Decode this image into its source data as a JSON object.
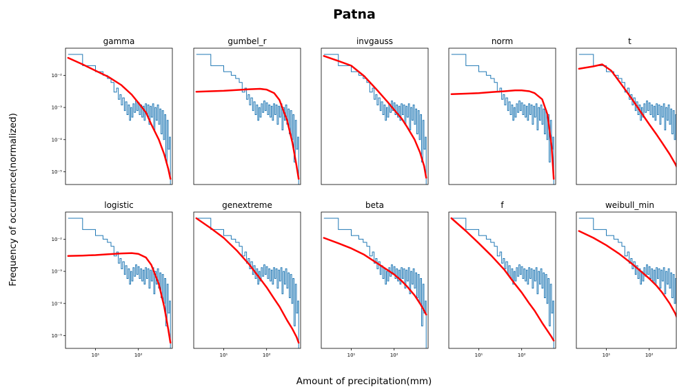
{
  "figure": {
    "title": "Patna",
    "xlabel": "Amount of precipitation(mm)",
    "ylabel": "Frequency of occurrence(normalized)"
  },
  "chart_data": {
    "type": "line",
    "xscale": "log",
    "yscale": "log",
    "xlim": [
      2,
      620
    ],
    "ylim": [
      4e-06,
      0.07
    ],
    "x_ticks": [
      {
        "value": 10,
        "label": "10¹"
      },
      {
        "value": 100,
        "label": "10²"
      }
    ],
    "y_ticks": [
      {
        "value": 0.01,
        "label": "10⁻²"
      },
      {
        "value": 0.001,
        "label": "10⁻³"
      },
      {
        "value": 0.0001,
        "label": "10⁻⁴"
      },
      {
        "value": 1e-05,
        "label": "10⁻⁵"
      }
    ],
    "histogram": {
      "steps": [
        [
          2.3,
          0.045
        ],
        [
          5,
          0.045
        ],
        [
          5,
          0.02
        ],
        [
          10,
          0.02
        ],
        [
          10,
          0.013
        ],
        [
          15,
          0.013
        ],
        [
          15,
          0.01
        ],
        [
          19,
          0.01
        ],
        [
          19,
          0.008
        ],
        [
          23,
          0.008
        ],
        [
          23,
          0.006
        ],
        [
          27,
          0.006
        ],
        [
          27,
          0.003
        ],
        [
          31,
          0.003
        ],
        [
          31,
          0.004
        ],
        [
          34,
          0.004
        ],
        [
          34,
          0.0018
        ],
        [
          37,
          0.0018
        ],
        [
          37,
          0.0025
        ],
        [
          40,
          0.0025
        ],
        [
          40,
          0.0012
        ],
        [
          43,
          0.0012
        ],
        [
          43,
          0.002
        ],
        [
          47,
          0.002
        ],
        [
          47,
          0.0008
        ],
        [
          50,
          0.0008
        ],
        [
          50,
          0.0015
        ],
        [
          54,
          0.0015
        ],
        [
          54,
          0.0006
        ],
        [
          58,
          0.0006
        ],
        [
          58,
          0.0012
        ],
        [
          62,
          0.0012
        ],
        [
          62,
          0.0004
        ],
        [
          66,
          0.0004
        ],
        [
          66,
          0.001
        ],
        [
          70,
          0.001
        ],
        [
          70,
          0.0005
        ],
        [
          75,
          0.0005
        ],
        [
          75,
          0.0013
        ],
        [
          80,
          0.0013
        ],
        [
          80,
          0.0007
        ],
        [
          86,
          0.0007
        ],
        [
          86,
          0.0016
        ],
        [
          92,
          0.0016
        ],
        [
          92,
          0.0008
        ],
        [
          98,
          0.0008
        ],
        [
          98,
          0.0014
        ],
        [
          105,
          0.0014
        ],
        [
          105,
          0.0006
        ],
        [
          112,
          0.0006
        ],
        [
          112,
          0.0012
        ],
        [
          120,
          0.0012
        ],
        [
          120,
          0.0005
        ],
        [
          128,
          0.0005
        ],
        [
          128,
          0.0011
        ],
        [
          136,
          0.0011
        ],
        [
          136,
          0.0004
        ],
        [
          145,
          0.0004
        ],
        [
          145,
          0.0013
        ],
        [
          155,
          0.0013
        ],
        [
          155,
          0.0006
        ],
        [
          165,
          0.0006
        ],
        [
          165,
          0.0012
        ],
        [
          176,
          0.0012
        ],
        [
          176,
          0.0003
        ],
        [
          188,
          0.0003
        ],
        [
          188,
          0.0011
        ],
        [
          200,
          0.0011
        ],
        [
          200,
          0.0005
        ],
        [
          214,
          0.0005
        ],
        [
          214,
          0.0013
        ],
        [
          228,
          0.0013
        ],
        [
          228,
          0.0002
        ],
        [
          243,
          0.0002
        ],
        [
          243,
          0.001
        ],
        [
          260,
          0.001
        ],
        [
          260,
          0.0004
        ],
        [
          277,
          0.0004
        ],
        [
          277,
          0.0012
        ],
        [
          296,
          0.0012
        ],
        [
          296,
          0.0003
        ],
        [
          316,
          0.0003
        ],
        [
          316,
          0.0009
        ],
        [
          337,
          0.0009
        ],
        [
          337,
          0.00015
        ],
        [
          360,
          0.00015
        ],
        [
          360,
          0.0008
        ],
        [
          384,
          0.0008
        ],
        [
          384,
          0.0001
        ],
        [
          410,
          0.0001
        ],
        [
          410,
          0.0006
        ],
        [
          437,
          0.0006
        ],
        [
          437,
          2e-05
        ],
        [
          466,
          2e-05
        ],
        [
          466,
          0.0004
        ],
        [
          497,
          0.0004
        ],
        [
          497,
          5e-05
        ],
        [
          530,
          5e-05
        ],
        [
          530,
          0.00012
        ],
        [
          560,
          0.00012
        ],
        [
          560,
          4e-06
        ]
      ]
    },
    "panels": [
      {
        "title": "gamma",
        "fit": [
          [
            2.3,
            0.035
          ],
          [
            5,
            0.022
          ],
          [
            10,
            0.014
          ],
          [
            20,
            0.009
          ],
          [
            40,
            0.005
          ],
          [
            70,
            0.0025
          ],
          [
            100,
            0.0014
          ],
          [
            150,
            0.0007
          ],
          [
            200,
            0.0003
          ],
          [
            300,
            0.0001
          ],
          [
            400,
            3.5e-05
          ],
          [
            500,
            1.2e-05
          ],
          [
            560,
            6e-06
          ]
        ]
      },
      {
        "title": "gumbel_r",
        "fit": [
          [
            2.3,
            0.0031
          ],
          [
            5,
            0.0032
          ],
          [
            10,
            0.0033
          ],
          [
            20,
            0.0035
          ],
          [
            40,
            0.0037
          ],
          [
            70,
            0.0038
          ],
          [
            100,
            0.0036
          ],
          [
            150,
            0.0028
          ],
          [
            200,
            0.0017
          ],
          [
            300,
            0.0004
          ],
          [
            400,
            8e-05
          ],
          [
            500,
            1.5e-05
          ],
          [
            560,
            6e-06
          ]
        ]
      },
      {
        "title": "invgauss",
        "fit": [
          [
            2.3,
            0.04
          ],
          [
            5,
            0.028
          ],
          [
            10,
            0.02
          ],
          [
            20,
            0.0095
          ],
          [
            40,
            0.0035
          ],
          [
            70,
            0.0015
          ],
          [
            100,
            0.00085
          ],
          [
            150,
            0.00045
          ],
          [
            200,
            0.00025
          ],
          [
            300,
            0.0001
          ],
          [
            400,
            4e-05
          ],
          [
            500,
            1.5e-05
          ],
          [
            560,
            6.5e-06
          ]
        ]
      },
      {
        "title": "norm",
        "fit": [
          [
            2.3,
            0.0026
          ],
          [
            5,
            0.0027
          ],
          [
            10,
            0.0028
          ],
          [
            20,
            0.003
          ],
          [
            40,
            0.0032
          ],
          [
            70,
            0.0034
          ],
          [
            100,
            0.0034
          ],
          [
            150,
            0.0032
          ],
          [
            200,
            0.0028
          ],
          [
            300,
            0.0018
          ],
          [
            400,
            0.0006
          ],
          [
            500,
            6e-05
          ],
          [
            560,
            6e-06
          ]
        ]
      },
      {
        "title": "t",
        "fit": [
          [
            2.3,
            0.016
          ],
          [
            5,
            0.019
          ],
          [
            8,
            0.022
          ],
          [
            13,
            0.014
          ],
          [
            20,
            0.0065
          ],
          [
            40,
            0.0018
          ],
          [
            70,
            0.0006
          ],
          [
            100,
            0.0003
          ],
          [
            150,
            0.00014
          ],
          [
            200,
            8e-05
          ],
          [
            300,
            3.5e-05
          ],
          [
            400,
            1.8e-05
          ],
          [
            500,
            1e-05
          ],
          [
            560,
            6.5e-06
          ]
        ]
      },
      {
        "title": "logistic",
        "fit": [
          [
            2.3,
            0.003
          ],
          [
            5,
            0.0031
          ],
          [
            10,
            0.0032
          ],
          [
            20,
            0.0034
          ],
          [
            40,
            0.0036
          ],
          [
            70,
            0.0037
          ],
          [
            100,
            0.0035
          ],
          [
            150,
            0.0027
          ],
          [
            200,
            0.0016
          ],
          [
            300,
            0.0004
          ],
          [
            400,
            8e-05
          ],
          [
            500,
            1.5e-05
          ],
          [
            560,
            6e-06
          ]
        ]
      },
      {
        "title": "genextreme",
        "fit": [
          [
            2.3,
            0.045
          ],
          [
            5,
            0.022
          ],
          [
            10,
            0.011
          ],
          [
            20,
            0.0045
          ],
          [
            40,
            0.0016
          ],
          [
            70,
            0.0006
          ],
          [
            100,
            0.00032
          ],
          [
            150,
            0.00014
          ],
          [
            200,
            8e-05
          ],
          [
            300,
            3e-05
          ],
          [
            400,
            1.6e-05
          ],
          [
            500,
            9e-06
          ],
          [
            560,
            6e-06
          ]
        ]
      },
      {
        "title": "beta",
        "fit": [
          [
            2.3,
            0.011
          ],
          [
            5,
            0.0075
          ],
          [
            10,
            0.0052
          ],
          [
            20,
            0.0033
          ],
          [
            40,
            0.0018
          ],
          [
            70,
            0.0011
          ],
          [
            100,
            0.0008
          ],
          [
            150,
            0.0005
          ],
          [
            200,
            0.00034
          ],
          [
            300,
            0.00018
          ],
          [
            400,
            0.0001
          ],
          [
            500,
            6e-05
          ],
          [
            560,
            4.5e-05
          ]
        ]
      },
      {
        "title": "f",
        "fit": [
          [
            2.3,
            0.045
          ],
          [
            5,
            0.018
          ],
          [
            10,
            0.0075
          ],
          [
            20,
            0.003
          ],
          [
            40,
            0.0011
          ],
          [
            70,
            0.0004
          ],
          [
            100,
            0.00022
          ],
          [
            150,
            0.0001
          ],
          [
            200,
            6e-05
          ],
          [
            300,
            2.5e-05
          ],
          [
            400,
            1.4e-05
          ],
          [
            500,
            9e-06
          ],
          [
            560,
            7e-06
          ]
        ]
      },
      {
        "title": "weibull_min",
        "fit": [
          [
            2.3,
            0.018
          ],
          [
            5,
            0.011
          ],
          [
            10,
            0.0065
          ],
          [
            20,
            0.0035
          ],
          [
            40,
            0.0017
          ],
          [
            70,
            0.0009
          ],
          [
            100,
            0.0006
          ],
          [
            150,
            0.00035
          ],
          [
            200,
            0.00022
          ],
          [
            300,
            0.0001
          ],
          [
            400,
            5e-05
          ],
          [
            500,
            2.5e-05
          ],
          [
            560,
            1.6e-05
          ]
        ]
      }
    ]
  }
}
